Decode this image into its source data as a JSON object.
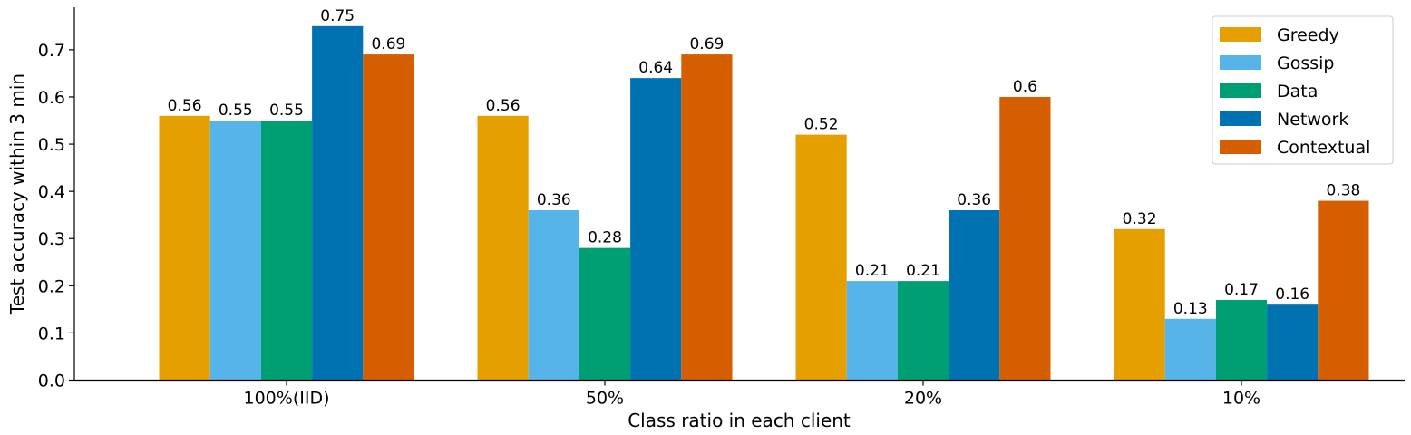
{
  "chart_data": {
    "type": "bar",
    "title": "",
    "xlabel": "Class ratio in each client",
    "ylabel": "Test accuracy within 3 min",
    "categories": [
      "100%(IID)",
      "50%",
      "20%",
      "10%"
    ],
    "ylim": [
      0,
      0.79
    ],
    "yticks": [
      "0.0",
      "0.1",
      "0.2",
      "0.3",
      "0.4",
      "0.5",
      "0.6",
      "0.7"
    ],
    "grid": false,
    "legend_position": "top-right",
    "series": [
      {
        "name": "Greedy",
        "color": "#E69F00",
        "values": [
          0.56,
          0.56,
          0.52,
          0.32
        ],
        "labels": [
          "0.56",
          "0.56",
          "0.52",
          "0.32"
        ]
      },
      {
        "name": "Gossip",
        "color": "#56B4E9",
        "values": [
          0.55,
          0.36,
          0.21,
          0.13
        ],
        "labels": [
          "0.55",
          "0.36",
          "0.21",
          "0.13"
        ]
      },
      {
        "name": "Data",
        "color": "#009E73",
        "values": [
          0.55,
          0.28,
          0.21,
          0.17
        ],
        "labels": [
          "0.55",
          "0.28",
          "0.21",
          "0.17"
        ]
      },
      {
        "name": "Network",
        "color": "#0072B2",
        "values": [
          0.75,
          0.64,
          0.36,
          0.16
        ],
        "labels": [
          "0.75",
          "0.64",
          "0.36",
          "0.16"
        ]
      },
      {
        "name": "Contextual",
        "color": "#D55E00",
        "values": [
          0.69,
          0.69,
          0.6,
          0.38
        ],
        "labels": [
          "0.69",
          "0.69",
          "0.6",
          "0.38"
        ]
      }
    ]
  }
}
